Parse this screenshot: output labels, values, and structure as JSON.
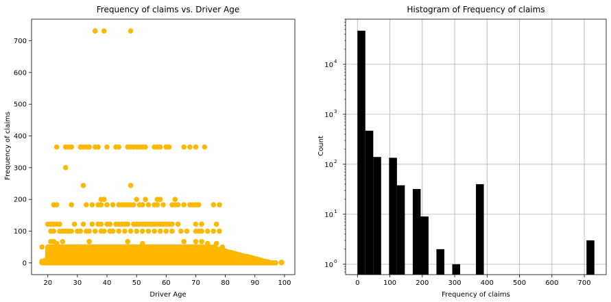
{
  "colors": {
    "scatter": "#ffb800",
    "bars": "#000000",
    "grid": "#b0b0b0",
    "axes": "#000000",
    "background": "#ffffff"
  },
  "chart_data": [
    {
      "type": "scatter",
      "title": "Frequency of claims vs. Driver Age",
      "xlabel": "Driver Age",
      "ylabel": "Frequency of claims",
      "xlim": [
        14.5,
        103.5
      ],
      "ylim": [
        -37,
        768
      ],
      "xticks": [
        20,
        30,
        40,
        50,
        60,
        70,
        80,
        90,
        100
      ],
      "yticks": [
        0,
        100,
        200,
        300,
        400,
        500,
        600,
        700
      ],
      "grid": false,
      "marker_color": "#ffb800",
      "band": {
        "description_values": "dense band of points for ages 18-97, frequency 0-50",
        "age_range": [
          18,
          97
        ],
        "freq_range": [
          0,
          50
        ]
      },
      "points": [
        {
          "x": 36,
          "y": 731
        },
        {
          "x": 39,
          "y": 731
        },
        {
          "x": 48,
          "y": 731
        },
        {
          "x": 23,
          "y": 365
        },
        {
          "x": 26,
          "y": 365
        },
        {
          "x": 27,
          "y": 365
        },
        {
          "x": 28,
          "y": 365
        },
        {
          "x": 31,
          "y": 365
        },
        {
          "x": 32,
          "y": 365
        },
        {
          "x": 33,
          "y": 365
        },
        {
          "x": 34,
          "y": 365
        },
        {
          "x": 36,
          "y": 365
        },
        {
          "x": 37,
          "y": 365
        },
        {
          "x": 40,
          "y": 365
        },
        {
          "x": 43,
          "y": 365
        },
        {
          "x": 44,
          "y": 365
        },
        {
          "x": 47,
          "y": 365
        },
        {
          "x": 48,
          "y": 365
        },
        {
          "x": 49,
          "y": 365
        },
        {
          "x": 50,
          "y": 365
        },
        {
          "x": 51,
          "y": 365
        },
        {
          "x": 52,
          "y": 365
        },
        {
          "x": 53,
          "y": 365
        },
        {
          "x": 56,
          "y": 365
        },
        {
          "x": 57,
          "y": 365
        },
        {
          "x": 58,
          "y": 365
        },
        {
          "x": 60,
          "y": 365
        },
        {
          "x": 61,
          "y": 365
        },
        {
          "x": 66,
          "y": 365
        },
        {
          "x": 68,
          "y": 365
        },
        {
          "x": 70,
          "y": 365
        },
        {
          "x": 73,
          "y": 365
        },
        {
          "x": 26,
          "y": 300
        },
        {
          "x": 32,
          "y": 244
        },
        {
          "x": 48,
          "y": 244
        },
        {
          "x": 38,
          "y": 200
        },
        {
          "x": 39,
          "y": 200
        },
        {
          "x": 50,
          "y": 200
        },
        {
          "x": 53,
          "y": 200
        },
        {
          "x": 57,
          "y": 200
        },
        {
          "x": 58,
          "y": 200
        },
        {
          "x": 63,
          "y": 200
        },
        {
          "x": 22,
          "y": 183
        },
        {
          "x": 23,
          "y": 183
        },
        {
          "x": 28,
          "y": 183
        },
        {
          "x": 33,
          "y": 183
        },
        {
          "x": 35,
          "y": 183
        },
        {
          "x": 37,
          "y": 183
        },
        {
          "x": 38,
          "y": 183
        },
        {
          "x": 40,
          "y": 183
        },
        {
          "x": 42,
          "y": 183
        },
        {
          "x": 44,
          "y": 183
        },
        {
          "x": 45,
          "y": 183
        },
        {
          "x": 46,
          "y": 183
        },
        {
          "x": 47,
          "y": 183
        },
        {
          "x": 48,
          "y": 183
        },
        {
          "x": 49,
          "y": 183
        },
        {
          "x": 51,
          "y": 183
        },
        {
          "x": 52,
          "y": 183
        },
        {
          "x": 54,
          "y": 183
        },
        {
          "x": 56,
          "y": 183
        },
        {
          "x": 57,
          "y": 183
        },
        {
          "x": 59,
          "y": 183
        },
        {
          "x": 62,
          "y": 183
        },
        {
          "x": 63,
          "y": 183
        },
        {
          "x": 64,
          "y": 183
        },
        {
          "x": 66,
          "y": 183
        },
        {
          "x": 68,
          "y": 183
        },
        {
          "x": 69,
          "y": 183
        },
        {
          "x": 70,
          "y": 183
        },
        {
          "x": 71,
          "y": 183
        },
        {
          "x": 76,
          "y": 183
        },
        {
          "x": 78,
          "y": 183
        },
        {
          "x": 20,
          "y": 122
        },
        {
          "x": 21,
          "y": 122
        },
        {
          "x": 22,
          "y": 122
        },
        {
          "x": 23,
          "y": 122
        },
        {
          "x": 24,
          "y": 122
        },
        {
          "x": 29,
          "y": 122
        },
        {
          "x": 32,
          "y": 122
        },
        {
          "x": 35,
          "y": 122
        },
        {
          "x": 37,
          "y": 122
        },
        {
          "x": 38,
          "y": 122
        },
        {
          "x": 40,
          "y": 122
        },
        {
          "x": 41,
          "y": 122
        },
        {
          "x": 43,
          "y": 122
        },
        {
          "x": 44,
          "y": 122
        },
        {
          "x": 45,
          "y": 122
        },
        {
          "x": 46,
          "y": 122
        },
        {
          "x": 47,
          "y": 122
        },
        {
          "x": 49,
          "y": 122
        },
        {
          "x": 50,
          "y": 122
        },
        {
          "x": 51,
          "y": 122
        },
        {
          "x": 52,
          "y": 122
        },
        {
          "x": 53,
          "y": 122
        },
        {
          "x": 54,
          "y": 122
        },
        {
          "x": 55,
          "y": 122
        },
        {
          "x": 56,
          "y": 122
        },
        {
          "x": 57,
          "y": 122
        },
        {
          "x": 58,
          "y": 122
        },
        {
          "x": 59,
          "y": 122
        },
        {
          "x": 60,
          "y": 122
        },
        {
          "x": 61,
          "y": 122
        },
        {
          "x": 62,
          "y": 122
        },
        {
          "x": 64,
          "y": 122
        },
        {
          "x": 70,
          "y": 122
        },
        {
          "x": 72,
          "y": 122
        },
        {
          "x": 77,
          "y": 122
        },
        {
          "x": 21,
          "y": 100
        },
        {
          "x": 22,
          "y": 100
        },
        {
          "x": 24,
          "y": 100
        },
        {
          "x": 25,
          "y": 100
        },
        {
          "x": 26,
          "y": 100
        },
        {
          "x": 27,
          "y": 100
        },
        {
          "x": 28,
          "y": 100
        },
        {
          "x": 30,
          "y": 100
        },
        {
          "x": 31,
          "y": 100
        },
        {
          "x": 33,
          "y": 100
        },
        {
          "x": 34,
          "y": 100
        },
        {
          "x": 36,
          "y": 100
        },
        {
          "x": 38,
          "y": 100
        },
        {
          "x": 39,
          "y": 100
        },
        {
          "x": 41,
          "y": 100
        },
        {
          "x": 42,
          "y": 100
        },
        {
          "x": 44,
          "y": 100
        },
        {
          "x": 46,
          "y": 100
        },
        {
          "x": 48,
          "y": 100
        },
        {
          "x": 50,
          "y": 100
        },
        {
          "x": 52,
          "y": 100
        },
        {
          "x": 54,
          "y": 100
        },
        {
          "x": 56,
          "y": 100
        },
        {
          "x": 58,
          "y": 100
        },
        {
          "x": 60,
          "y": 100
        },
        {
          "x": 62,
          "y": 100
        },
        {
          "x": 65,
          "y": 100
        },
        {
          "x": 67,
          "y": 100
        },
        {
          "x": 70,
          "y": 100
        },
        {
          "x": 71,
          "y": 100
        },
        {
          "x": 72,
          "y": 100
        },
        {
          "x": 74,
          "y": 100
        },
        {
          "x": 76,
          "y": 100
        },
        {
          "x": 78,
          "y": 100
        },
        {
          "x": 21,
          "y": 67
        },
        {
          "x": 22,
          "y": 67
        },
        {
          "x": 23,
          "y": 61
        },
        {
          "x": 25,
          "y": 67
        },
        {
          "x": 34,
          "y": 67
        },
        {
          "x": 47,
          "y": 67
        },
        {
          "x": 52,
          "y": 61
        },
        {
          "x": 66,
          "y": 67
        },
        {
          "x": 70,
          "y": 67
        },
        {
          "x": 72,
          "y": 67
        },
        {
          "x": 74,
          "y": 61
        },
        {
          "x": 77,
          "y": 61
        },
        {
          "x": 18,
          "y": 50
        },
        {
          "x": 79,
          "y": 50
        },
        {
          "x": 76,
          "y": 50
        },
        {
          "x": 80,
          "y": 30
        },
        {
          "x": 81,
          "y": 22
        },
        {
          "x": 83,
          "y": 25
        },
        {
          "x": 85,
          "y": 12
        },
        {
          "x": 87,
          "y": 10
        },
        {
          "x": 90,
          "y": 5
        },
        {
          "x": 92,
          "y": 3
        },
        {
          "x": 95,
          "y": 1
        },
        {
          "x": 99,
          "y": 0
        },
        {
          "x": 99,
          "y": 2
        }
      ]
    },
    {
      "type": "bar",
      "title": "Histogram of Frequency of claims",
      "xlabel": "Frequency of claims",
      "ylabel": "Count",
      "yscale": "log",
      "xlim": [
        -36.5,
        767.5
      ],
      "ylim": [
        0.62,
        80000
      ],
      "xticks": [
        0,
        100,
        200,
        300,
        400,
        500,
        600,
        700
      ],
      "yticks": [
        {
          "value": 1,
          "base": "10",
          "exp": "0"
        },
        {
          "value": 10,
          "base": "10",
          "exp": "1"
        },
        {
          "value": 100,
          "base": "10",
          "exp": "2"
        },
        {
          "value": 1000,
          "base": "10",
          "exp": "3"
        },
        {
          "value": 10000,
          "base": "10",
          "exp": "4"
        }
      ],
      "grid": true,
      "bin_width": 24.4,
      "bins": [
        {
          "x": 0,
          "count": 47000
        },
        {
          "x": 24.4,
          "count": 470
        },
        {
          "x": 48.7,
          "count": 140
        },
        {
          "x": 97.5,
          "count": 135
        },
        {
          "x": 121.8,
          "count": 38
        },
        {
          "x": 170.6,
          "count": 32
        },
        {
          "x": 182.7,
          "count": 9
        },
        {
          "x": 195,
          "count": 9
        },
        {
          "x": 243.7,
          "count": 2
        },
        {
          "x": 292.5,
          "count": 1
        },
        {
          "x": 365.6,
          "count": 40
        },
        {
          "x": 706.7,
          "count": 3
        }
      ]
    }
  ]
}
